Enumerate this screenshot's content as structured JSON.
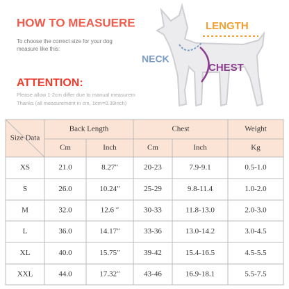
{
  "header": {
    "title": "HOW TO MEASUERE",
    "subtitle": [
      "To choose the correct size for your dog",
      "measure like this:"
    ]
  },
  "labels": {
    "length": "LENGTH",
    "neck": "NECK",
    "chest": "CHEST"
  },
  "attention": {
    "title": "ATTENTION:",
    "notes": [
      "Please allow 1-2cm differ due to manual measurem",
      "Thanks (all measurement in cm, 1cm=0.39inch)"
    ]
  },
  "table": {
    "header_groups": [
      "Size Data",
      "Back Length",
      "Chest",
      "Weight"
    ],
    "header_units": [
      "Cm",
      "Inch",
      "Cm",
      "Inch",
      "Kg"
    ],
    "rows": [
      [
        "XS",
        "21.0",
        "8.27″",
        "20-23",
        "7.9-9.1",
        "0.5-1.0"
      ],
      [
        "S",
        "26.0",
        "10.24″",
        "25-29",
        "9.8-11.4",
        "1.0-2.0"
      ],
      [
        "M",
        "32.0",
        "12.6 ″",
        "30-33",
        "11.8-13.0",
        "2.0-3.0"
      ],
      [
        "L",
        "36.0",
        "14.17″",
        "33-36",
        "13.0-14.2",
        "3.0-4.5"
      ],
      [
        "XL",
        "40.0",
        "15.75″",
        "39-42",
        "15.4-16.5",
        "4.5-5.5"
      ],
      [
        "XXL",
        "44.0",
        "17.32″",
        "43-46",
        "16.9-18.1",
        "5.5-7.5"
      ]
    ]
  }
}
